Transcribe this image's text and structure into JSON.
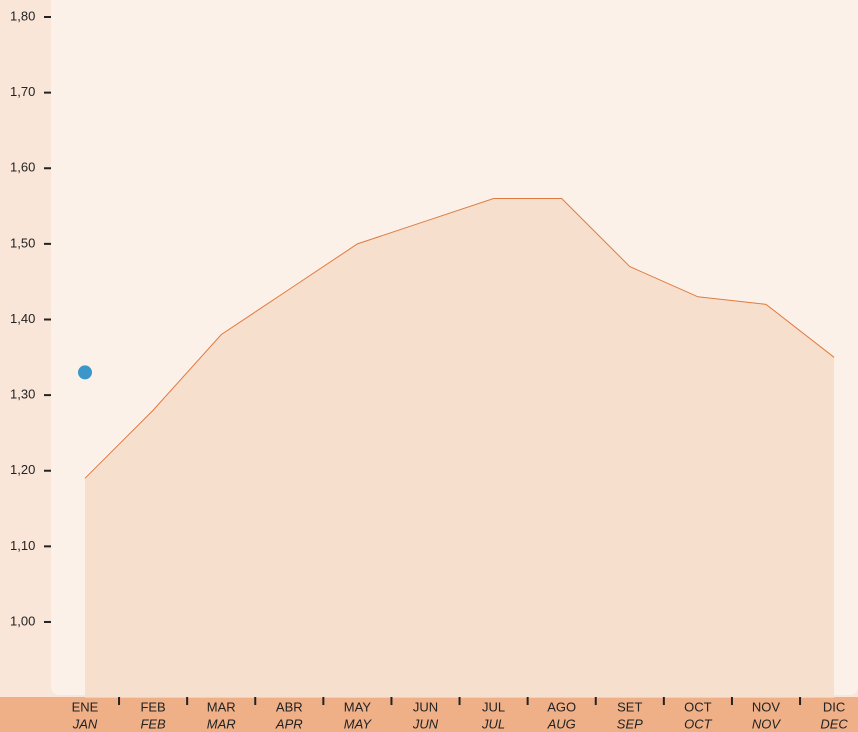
{
  "chart_data": {
    "type": "area",
    "categories": [
      "ENE",
      "FEB",
      "MAR",
      "ABR",
      "MAY",
      "JUN",
      "JUL",
      "AGO",
      "SET",
      "OCT",
      "NOV",
      "DIC"
    ],
    "categories_alt": [
      "JAN",
      "FEB",
      "MAR",
      "APR",
      "MAY",
      "JUN",
      "JUL",
      "AUG",
      "SEP",
      "OCT",
      "NOV",
      "DEC"
    ],
    "series": [
      {
        "color": "#e07b40",
        "fill": "#f7dfcd",
        "style": "area",
        "values": [
          1.19,
          1.28,
          1.38,
          1.44,
          1.5,
          1.53,
          1.56,
          1.56,
          1.47,
          1.43,
          1.42,
          1.35
        ]
      },
      {
        "color": "#3b97c9",
        "style": "dot",
        "values": [
          1.33,
          null,
          null,
          null,
          null,
          null,
          null,
          null,
          null,
          null,
          null,
          null
        ]
      }
    ],
    "ylim": [
      0.9,
      1.8
    ],
    "yticks": [
      {
        "value": 1.0,
        "label": "1,00"
      },
      {
        "value": 1.1,
        "label": "1,10"
      },
      {
        "value": 1.2,
        "label": "1,20"
      },
      {
        "value": 1.3,
        "label": "1,30"
      },
      {
        "value": 1.4,
        "label": "1,40"
      },
      {
        "value": 1.5,
        "label": "1,50"
      },
      {
        "value": 1.6,
        "label": "1,60"
      },
      {
        "value": 1.7,
        "label": "1,70"
      },
      {
        "value": 1.8,
        "label": "1,80"
      }
    ]
  }
}
